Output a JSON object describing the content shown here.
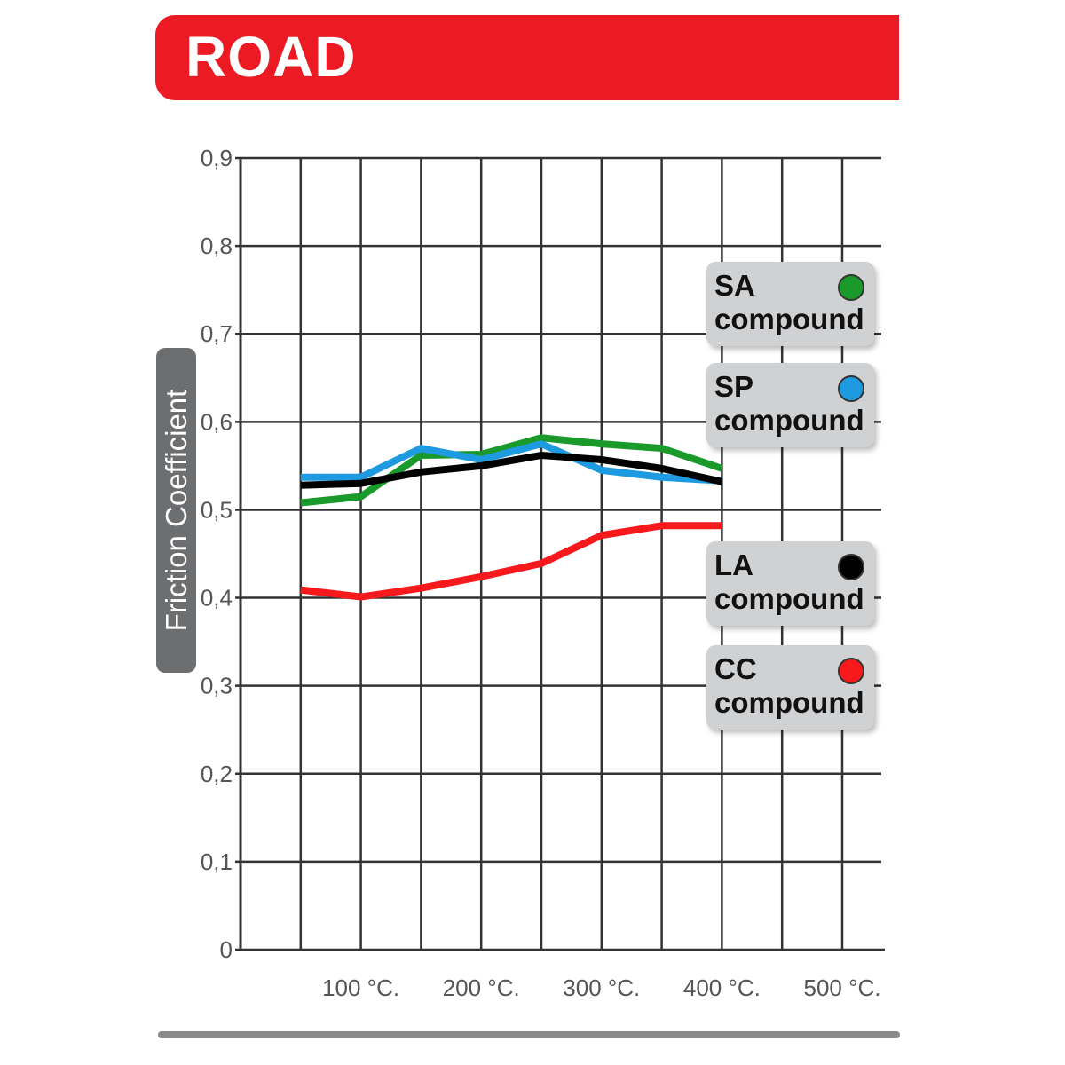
{
  "header": {
    "title": "ROAD"
  },
  "chart_data": {
    "type": "line",
    "title": "ROAD",
    "xlabel": "",
    "ylabel": "Friction Coefficient",
    "xlim": [
      0,
      500
    ],
    "ylim": [
      0,
      0.9
    ],
    "grid": true,
    "legend_position": "right",
    "x_ticks": [
      {
        "value": 100,
        "label": "100 °C."
      },
      {
        "value": 200,
        "label": "200 °C."
      },
      {
        "value": 300,
        "label": "300 °C."
      },
      {
        "value": 400,
        "label": "400 °C."
      },
      {
        "value": 500,
        "label": "500 °C."
      }
    ],
    "y_ticks": [
      {
        "value": 0,
        "label": "0"
      },
      {
        "value": 0.1,
        "label": "0,1"
      },
      {
        "value": 0.2,
        "label": "0,2"
      },
      {
        "value": 0.3,
        "label": "0,3"
      },
      {
        "value": 0.4,
        "label": "0,4"
      },
      {
        "value": 0.5,
        "label": "0,5"
      },
      {
        "value": 0.6,
        "label": "0,6"
      },
      {
        "value": 0.7,
        "label": "0,7"
      },
      {
        "value": 0.8,
        "label": "0,8"
      },
      {
        "value": 0.9,
        "label": "0,9"
      }
    ],
    "x": [
      50,
      100,
      150,
      200,
      250,
      300,
      350,
      400
    ],
    "series": [
      {
        "name": "SA compound",
        "code": "SA",
        "word": "compound",
        "color": "#1a9a2a",
        "values": [
          0.508,
          0.515,
          0.562,
          0.563,
          0.582,
          0.575,
          0.57,
          0.547
        ]
      },
      {
        "name": "SP compound",
        "code": "SP",
        "word": "compound",
        "color": "#1e9be0",
        "values": [
          0.537,
          0.537,
          0.57,
          0.557,
          0.575,
          0.545,
          0.537,
          0.533
        ]
      },
      {
        "name": "LA compound",
        "code": "LA",
        "word": "compound",
        "color": "#000000",
        "values": [
          0.528,
          0.53,
          0.543,
          0.55,
          0.562,
          0.557,
          0.547,
          0.532
        ]
      },
      {
        "name": "CC compound",
        "code": "CC",
        "word": "compound",
        "color": "#f8191c",
        "values": [
          0.409,
          0.401,
          0.411,
          0.424,
          0.439,
          0.471,
          0.482,
          0.482
        ]
      }
    ]
  }
}
